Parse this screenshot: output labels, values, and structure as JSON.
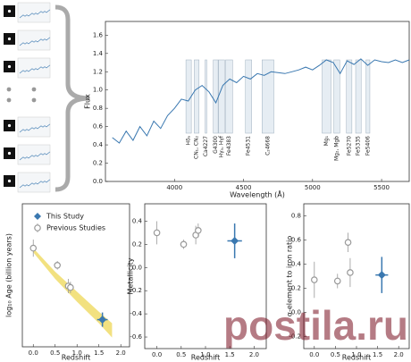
{
  "chart_data": [
    {
      "type": "line",
      "ylabel": "Flux",
      "xlabel": "Wavelength (Å)",
      "color": "#3a78b0",
      "x": [
        3550,
        3600,
        3650,
        3700,
        3750,
        3800,
        3850,
        3900,
        3950,
        4000,
        4050,
        4100,
        4150,
        4200,
        4250,
        4300,
        4350,
        4400,
        4450,
        4500,
        4550,
        4600,
        4650,
        4700,
        4750,
        4800,
        4850,
        4900,
        4950,
        5000,
        5050,
        5100,
        5150,
        5200,
        5250,
        5300,
        5350,
        5400,
        5450,
        5500,
        5550,
        5600,
        5650,
        5700
      ],
      "values": [
        0.48,
        0.42,
        0.55,
        0.45,
        0.6,
        0.5,
        0.66,
        0.58,
        0.72,
        0.8,
        0.9,
        0.88,
        1.0,
        1.05,
        0.98,
        0.86,
        1.05,
        1.12,
        1.08,
        1.15,
        1.12,
        1.18,
        1.16,
        1.2,
        1.19,
        1.18,
        1.2,
        1.22,
        1.25,
        1.22,
        1.27,
        1.33,
        1.3,
        1.18,
        1.32,
        1.28,
        1.34,
        1.27,
        1.33,
        1.31,
        1.3,
        1.33,
        1.3,
        1.33
      ],
      "xlim": [
        3500,
        5700
      ],
      "ylim": [
        0,
        1.75
      ],
      "xticks": [
        4000,
        4500,
        5000,
        5500
      ],
      "yticks": [
        {
          "value": 0,
          "label": "0.0"
        },
        0.2,
        0.4,
        0.6,
        0.8,
        {
          "value": 1,
          "label": "1.0"
        },
        1.2,
        1.4,
        1.6
      ],
      "bands": [
        {
          "label": "Hδₐ",
          "start": 4083,
          "end": 4122
        },
        {
          "label": "CN₁, CN₂",
          "start": 4143,
          "end": 4178
        },
        {
          "label": "Ca4227",
          "start": 4222,
          "end": 4234
        },
        {
          "label": "G4300",
          "start": 4281,
          "end": 4316
        },
        {
          "label": "Hγₐ, Hγf",
          "start": 4319,
          "end": 4363
        },
        {
          "label": "Fe4383",
          "start": 4370,
          "end": 4421
        },
        {
          "label": "Fe4531",
          "start": 4514,
          "end": 4559
        },
        {
          "label": "C₂4668",
          "start": 4634,
          "end": 4720
        },
        {
          "label": "Mg₁",
          "start": 5069,
          "end": 5134
        },
        {
          "label": "Mg₂, Mgb",
          "start": 5154,
          "end": 5197
        },
        {
          "label": "Fe5270",
          "start": 5245,
          "end": 5285
        },
        {
          "label": "Fe5335",
          "start": 5312,
          "end": 5352
        },
        {
          "label": "Fe5406",
          "start": 5387,
          "end": 5415
        }
      ]
    },
    {
      "type": "scatter",
      "ylabel": "log₁₀ Age (billion years)",
      "xlabel": "Redshift",
      "xlim": [
        -0.25,
        2.2
      ],
      "ylim": [
        -0.35,
        1.65
      ],
      "xticks": [
        {
          "value": 0,
          "label": "0.0"
        },
        0.5,
        {
          "value": 1,
          "label": "1.0"
        },
        1.5,
        {
          "value": 2,
          "label": "2.0"
        }
      ],
      "legend": "upper right",
      "band": {
        "color": "#f0dc6a",
        "x": [
          0,
          0.5,
          1,
          1.5,
          1.8
        ],
        "lower": [
          0.97,
          0.6,
          0.28,
          -0.02,
          -0.22
        ],
        "upper": [
          1.03,
          0.7,
          0.42,
          0.14,
          -0.02
        ]
      },
      "series": [
        {
          "name": "This Study",
          "color": "#3a78b0",
          "marker": "diamond",
          "x": [
            1.58
          ],
          "values": [
            0.03
          ],
          "yerr": [
            0.1
          ],
          "xerr": [
            0.12
          ]
        },
        {
          "name": "Previous Studies",
          "color": "#999999",
          "marker": "circle",
          "x": [
            0,
            0.55,
            0.8,
            0.85
          ],
          "values": [
            1.03,
            0.79,
            0.5,
            0.48
          ],
          "yerr": [
            0.12,
            0.06,
            0.1,
            0.08
          ]
        }
      ]
    },
    {
      "type": "scatter",
      "ylabel": "Metallicity",
      "xlabel": "Redshift",
      "xlim": [
        -0.25,
        2.25
      ],
      "ylim": [
        -0.7,
        0.55
      ],
      "xticks": [
        {
          "value": 0,
          "label": "0.0"
        },
        0.5,
        {
          "value": 1,
          "label": "1.0"
        },
        1.5,
        {
          "value": 2,
          "label": "2.0"
        }
      ],
      "yticks": [
        0.4,
        0.2,
        {
          "value": 0,
          "label": "0.0"
        },
        -0.2,
        -0.4,
        -0.6
      ],
      "series": [
        {
          "color": "#3a78b0",
          "marker": "diamond",
          "x": [
            1.6
          ],
          "values": [
            0.23
          ],
          "yerr": [
            0.15
          ],
          "xerr": [
            0.15
          ]
        },
        {
          "color": "#999999",
          "marker": "circle",
          "x": [
            0,
            0.55,
            0.8,
            0.85
          ],
          "values": [
            0.3,
            0.2,
            0.28,
            0.32
          ],
          "yerr": [
            0.1,
            0.04,
            0.08,
            0.06
          ]
        }
      ]
    },
    {
      "type": "scatter",
      "ylabel": "α-element to iron ratio",
      "xlabel": "Redshift",
      "xlim": [
        -0.25,
        2.25
      ],
      "ylim": [
        -0.3,
        0.9
      ],
      "xticks": [
        {
          "value": 0,
          "label": "0.0"
        },
        0.5,
        {
          "value": 1,
          "label": "1.0"
        },
        1.5,
        {
          "value": 2,
          "label": "2.0"
        }
      ],
      "yticks": [
        0.8,
        0.6,
        0.4,
        0.2,
        {
          "value": 0,
          "label": "0.0"
        },
        -0.2
      ],
      "series": [
        {
          "color": "#3a78b0",
          "marker": "diamond",
          "x": [
            1.6
          ],
          "values": [
            0.31
          ],
          "yerr": [
            0.15
          ],
          "xerr": [
            0.15
          ]
        },
        {
          "color": "#999999",
          "marker": "circle",
          "x": [
            0,
            0.55,
            0.8,
            0.85
          ],
          "values": [
            0.27,
            0.26,
            0.58,
            0.33
          ],
          "yerr": [
            0.15,
            0.06,
            0.08,
            0.12
          ]
        }
      ]
    }
  ],
  "watermark": "postila.ru"
}
